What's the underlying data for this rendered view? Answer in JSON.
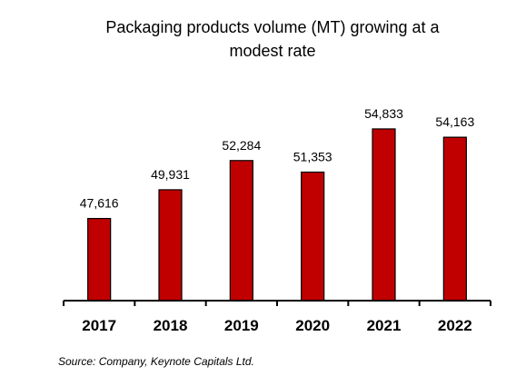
{
  "chart_data": {
    "type": "bar",
    "title": "Packaging products volume (MT) growing at a modest rate",
    "title_lines": [
      "Packaging products volume (MT) growing at a",
      "modest rate"
    ],
    "categories": [
      "2017",
      "2018",
      "2019",
      "2020",
      "2021",
      "2022"
    ],
    "values": [
      47616,
      49931,
      52284,
      51353,
      54833,
      54163
    ],
    "value_labels": [
      "47,616",
      "49,931",
      "52,284",
      "51,353",
      "54,833",
      "54,163"
    ],
    "bar_color": "#c00000",
    "bar_outline_color": "#000000",
    "xlabel": "",
    "ylabel": "",
    "ylim": [
      41000,
      56000
    ],
    "grid": false,
    "legend": "none"
  },
  "source": "Source: Company, Keynote Capitals Ltd."
}
